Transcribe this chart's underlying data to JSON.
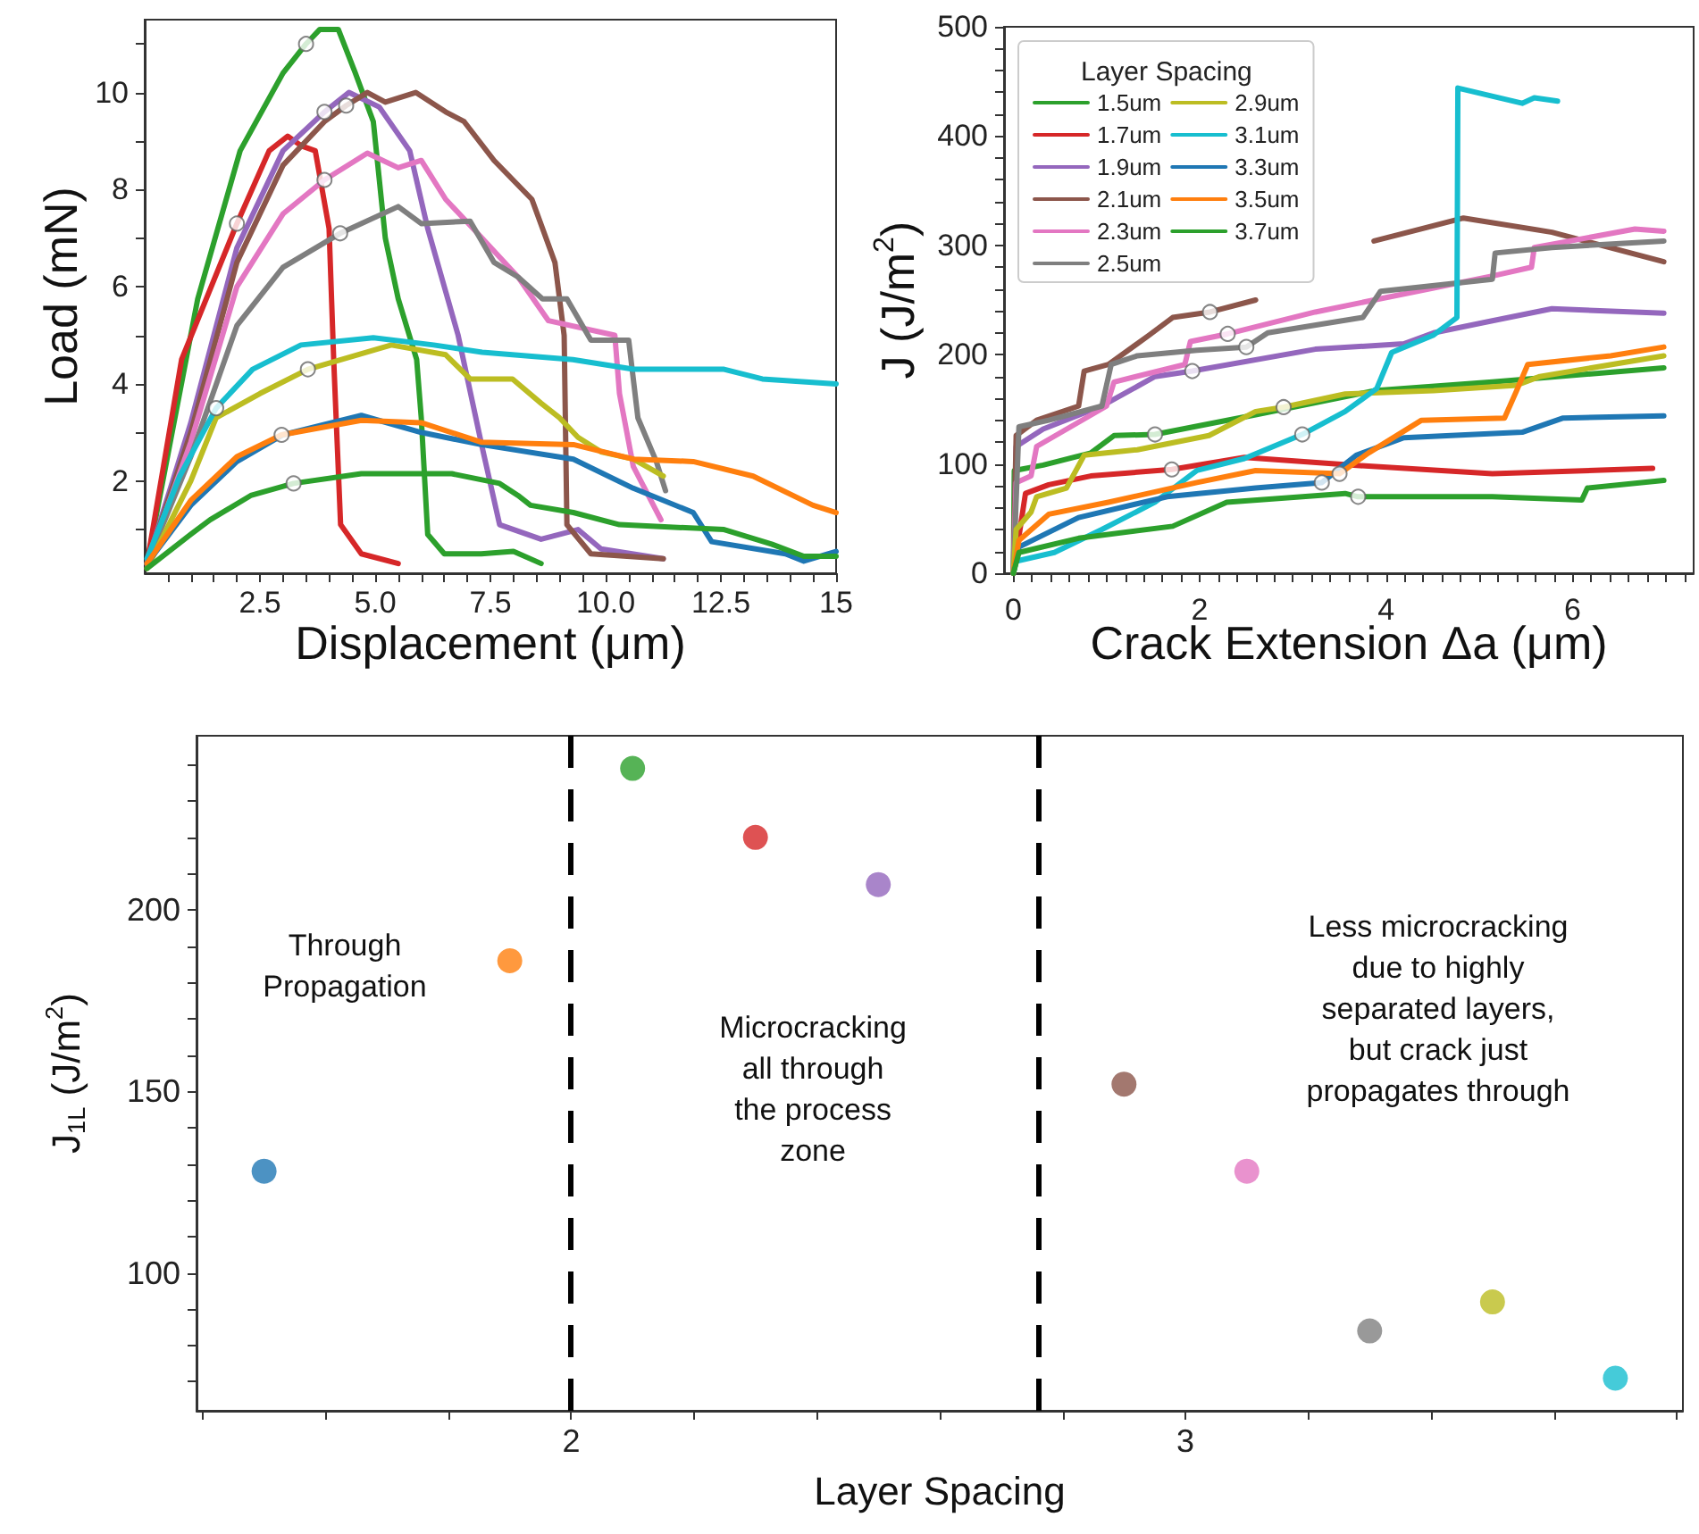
{
  "chart_data": [
    {
      "type": "line",
      "xlabel": "Displacement (μm)",
      "ylabel": "Load (mN)",
      "marker": "none",
      "xlim": [
        0,
        15
      ],
      "ylim": [
        0.1,
        11.5
      ],
      "xticks": [
        {
          "value": 0.5,
          "label": null
        },
        {
          "value": 1,
          "label": null
        },
        {
          "value": 1.5,
          "label": null
        },
        {
          "value": 2,
          "label": null
        },
        2.5,
        {
          "value": 3,
          "label": null
        },
        {
          "value": 3.5,
          "label": null
        },
        {
          "value": 4,
          "label": null
        },
        {
          "value": 4.5,
          "label": null
        },
        {
          "value": 5,
          "label": "5.0"
        },
        {
          "value": 5.5,
          "label": null
        },
        {
          "value": 6,
          "label": null
        },
        {
          "value": 6.5,
          "label": null
        },
        {
          "value": 7,
          "label": null
        },
        7.5,
        {
          "value": 8,
          "label": null
        },
        {
          "value": 8.5,
          "label": null
        },
        {
          "value": 9,
          "label": null
        },
        {
          "value": 9.5,
          "label": null
        },
        {
          "value": 10,
          "label": "10.0"
        },
        {
          "value": 10.5,
          "label": null
        },
        {
          "value": 11,
          "label": null
        },
        {
          "value": 11.5,
          "label": null
        },
        {
          "value": 12,
          "label": null
        },
        12.5,
        {
          "value": 13,
          "label": null
        },
        {
          "value": 13.5,
          "label": null
        },
        {
          "value": 14,
          "label": null
        },
        {
          "value": 14.5,
          "label": null
        },
        15
      ],
      "yticks": [
        {
          "value": 1,
          "label": null
        },
        2,
        {
          "value": 3,
          "label": null
        },
        4,
        {
          "value": 5,
          "label": null
        },
        6,
        {
          "value": 7,
          "label": null
        },
        8,
        {
          "value": 9,
          "label": null
        },
        10,
        {
          "value": 11,
          "label": null
        }
      ],
      "series": [
        {
          "color": "#2ca02c",
          "x": [
            0.05,
            1.15,
            2.07,
            3.0,
            3.5,
            3.8,
            4.2,
            4.57,
            4.96,
            5.22,
            5.5,
            5.9,
            6.0,
            6.14,
            6.5,
            7.3,
            8.0,
            8.6
          ],
          "values": [
            0.3,
            5.75,
            8.8,
            10.4,
            11.0,
            11.3,
            11.3,
            10.4,
            9.4,
            7.0,
            5.75,
            4.5,
            3.3,
            0.9,
            0.5,
            0.5,
            0.55,
            0.3
          ]
        },
        {
          "color": "#d62728",
          "x": [
            0.05,
            0.8,
            2.0,
            2.7,
            3.1,
            3.4,
            3.7,
            4.0,
            4.1,
            4.25,
            4.7,
            5.5
          ],
          "values": [
            0.3,
            4.5,
            7.3,
            8.8,
            9.1,
            8.9,
            8.8,
            7.2,
            4.5,
            1.1,
            0.5,
            0.3
          ]
        },
        {
          "color": "#9467bd",
          "x": [
            0.05,
            1.0,
            2.0,
            3.0,
            3.9,
            4.43,
            5.09,
            5.75,
            6.14,
            6.8,
            7.32,
            7.7,
            8.6,
            9.4,
            9.9,
            11.25
          ],
          "values": [
            0.3,
            3.2,
            6.8,
            8.8,
            9.6,
            10.0,
            9.7,
            8.8,
            7.2,
            5.0,
            2.7,
            1.1,
            0.8,
            1.0,
            0.6,
            0.4
          ]
        },
        {
          "color": "#8c564b",
          "x": [
            0.05,
            1.0,
            2.0,
            3.0,
            3.9,
            4.37,
            4.83,
            5.22,
            5.88,
            6.53,
            6.93,
            7.58,
            8.4,
            8.9,
            9.1,
            9.16,
            9.68,
            11.25
          ],
          "values": [
            0.3,
            3.0,
            6.5,
            8.5,
            9.4,
            9.73,
            10.0,
            9.8,
            10.0,
            9.6,
            9.4,
            8.6,
            7.8,
            6.5,
            5.0,
            1.1,
            0.5,
            0.4
          ]
        },
        {
          "color": "#e377c2",
          "x": [
            0.05,
            1.0,
            2.0,
            3.0,
            3.9,
            4.83,
            5.5,
            6.0,
            6.53,
            7.32,
            8.1,
            8.76,
            10.2,
            10.3,
            10.6,
            11.2
          ],
          "values": [
            0.3,
            2.8,
            6.0,
            7.5,
            8.2,
            8.75,
            8.45,
            8.6,
            7.8,
            7.0,
            6.2,
            5.3,
            5.0,
            3.8,
            2.3,
            1.2
          ]
        },
        {
          "color": "#7f7f7f",
          "x": [
            0.05,
            1.0,
            2.0,
            3.0,
            4.24,
            5.5,
            6.0,
            7.06,
            7.58,
            8.1,
            8.63,
            9.16,
            9.68,
            10.5,
            10.7,
            11.1,
            11.3
          ],
          "values": [
            0.3,
            2.5,
            5.2,
            6.4,
            7.1,
            7.65,
            7.3,
            7.35,
            6.5,
            6.2,
            5.75,
            5.75,
            4.9,
            4.9,
            3.3,
            2.4,
            1.8
          ]
        },
        {
          "color": "#bcbd22",
          "x": [
            0.05,
            1.0,
            1.55,
            2.5,
            3.54,
            5.35,
            6.53,
            7.06,
            7.98,
            8.6,
            9.0,
            9.4,
            9.9,
            10.6,
            11.25
          ],
          "values": [
            0.2,
            2.0,
            3.3,
            3.8,
            4.3,
            4.8,
            4.6,
            4.1,
            4.1,
            3.6,
            3.3,
            2.9,
            2.6,
            2.45,
            2.1
          ]
        },
        {
          "color": "#17becf",
          "x": [
            0.05,
            0.76,
            1.55,
            2.34,
            3.39,
            4.96,
            6.27,
            7.32,
            9.29,
            10.6,
            12.57,
            13.4,
            15
          ],
          "values": [
            0.4,
            2.1,
            3.5,
            4.3,
            4.8,
            4.95,
            4.8,
            4.65,
            4.5,
            4.3,
            4.3,
            4.1,
            4.0
          ]
        },
        {
          "color": "#1f77b4",
          "x": [
            0.05,
            1.0,
            2.0,
            3.0,
            4.7,
            6.0,
            7.3,
            9.3,
            10.6,
            11.9,
            12.3,
            13.9,
            14.3,
            15
          ],
          "values": [
            0.3,
            1.5,
            2.4,
            2.95,
            3.35,
            3.0,
            2.75,
            2.45,
            1.85,
            1.35,
            0.75,
            0.5,
            0.35,
            0.55
          ]
        },
        {
          "color": "#ff7f0e",
          "x": [
            0.05,
            1.0,
            2.0,
            2.97,
            4.7,
            6.0,
            7.3,
            9.3,
            10.6,
            11.9,
            13.2,
            14.5,
            15
          ],
          "values": [
            0.3,
            1.6,
            2.5,
            2.95,
            3.25,
            3.2,
            2.8,
            2.75,
            2.45,
            2.4,
            2.1,
            1.5,
            1.35
          ]
        },
        {
          "color": "#2ca02c",
          "x": [
            0.05,
            1.0,
            1.42,
            2.3,
            3.23,
            4.7,
            6.66,
            7.7,
            8.1,
            8.37,
            9.3,
            10.3,
            12.57,
            13.6,
            14.3,
            15
          ],
          "values": [
            0.2,
            0.9,
            1.2,
            1.7,
            1.95,
            2.15,
            2.15,
            1.95,
            1.7,
            1.5,
            1.35,
            1.1,
            1.0,
            0.7,
            0.45,
            0.45
          ]
        },
        {
          "type": "scatter",
          "marker": "circle",
          "color": "#ffffff",
          "x": [
            2.0,
            3.5,
            3.9,
            4.37,
            3.9,
            4.24,
            3.54,
            1.55,
            2.97,
            3.23
          ],
          "values": [
            7.3,
            11.0,
            9.6,
            9.73,
            8.2,
            7.1,
            4.3,
            3.5,
            2.95,
            1.95
          ]
        }
      ]
    },
    {
      "type": "line",
      "xlabel": "Crack Extension Δa (μm)",
      "ylabel": "J (J/m$^{2}$)",
      "legend_title": "Layer Spacing",
      "legend": "top left",
      "marker": "none",
      "xlim": [
        -0.1,
        7.3
      ],
      "ylim": [
        0,
        500
      ],
      "xticks": [
        0,
        {
          "value": 0.2,
          "label": null
        },
        {
          "value": 0.4,
          "label": null
        },
        {
          "value": 0.6,
          "label": null
        },
        {
          "value": 0.8,
          "label": null
        },
        {
          "value": 1,
          "label": null
        },
        {
          "value": 1.2,
          "label": null
        },
        {
          "value": 1.4,
          "label": null
        },
        {
          "value": 1.6,
          "label": null
        },
        {
          "value": 1.8,
          "label": null
        },
        2,
        {
          "value": 2.2,
          "label": null
        },
        {
          "value": 2.4,
          "label": null
        },
        {
          "value": 2.6,
          "label": null
        },
        {
          "value": 2.8,
          "label": null
        },
        {
          "value": 3,
          "label": null
        },
        {
          "value": 3.2,
          "label": null
        },
        {
          "value": 3.4,
          "label": null
        },
        {
          "value": 3.6,
          "label": null
        },
        {
          "value": 3.8,
          "label": null
        },
        4,
        {
          "value": 4.2,
          "label": null
        },
        {
          "value": 4.4,
          "label": null
        },
        {
          "value": 4.6,
          "label": null
        },
        {
          "value": 4.8,
          "label": null
        },
        {
          "value": 5,
          "label": null
        },
        {
          "value": 5.2,
          "label": null
        },
        {
          "value": 5.4,
          "label": null
        },
        {
          "value": 5.6,
          "label": null
        },
        {
          "value": 5.8,
          "label": null
        },
        6,
        {
          "value": 6.2,
          "label": null
        },
        {
          "value": 6.4,
          "label": null
        },
        {
          "value": 6.6,
          "label": null
        },
        {
          "value": 6.8,
          "label": null
        },
        {
          "value": 7,
          "label": null
        },
        {
          "value": 7.2,
          "label": null
        }
      ],
      "yticks": [
        0,
        {
          "value": 20,
          "label": null
        },
        {
          "value": 40,
          "label": null
        },
        {
          "value": 60,
          "label": null
        },
        {
          "value": 80,
          "label": null
        },
        100,
        {
          "value": 120,
          "label": null
        },
        {
          "value": 140,
          "label": null
        },
        {
          "value": 160,
          "label": null
        },
        {
          "value": 180,
          "label": null
        },
        200,
        {
          "value": 220,
          "label": null
        },
        {
          "value": 240,
          "label": null
        },
        {
          "value": 260,
          "label": null
        },
        {
          "value": 280,
          "label": null
        },
        300,
        {
          "value": 320,
          "label": null
        },
        {
          "value": 340,
          "label": null
        },
        {
          "value": 360,
          "label": null
        },
        {
          "value": 380,
          "label": null
        },
        400,
        {
          "value": 420,
          "label": null
        },
        {
          "value": 440,
          "label": null
        },
        {
          "value": 460,
          "label": null
        },
        {
          "value": 480,
          "label": null
        },
        500
      ],
      "series": [
        {
          "name": "1.5um",
          "color": "#2ca02c",
          "x": [
            0,
            0.01,
            0.32,
            0.83,
            1.08,
            1.52,
            2.6,
            3.87,
            5.14,
            6.98
          ],
          "values": [
            0,
            94,
            99,
            110,
            126,
            127,
            145,
            167,
            175,
            188
          ]
        },
        {
          "name": "1.7um",
          "color": "#d62728",
          "x": [
            0,
            0.13,
            0.38,
            0.83,
            1.7,
            2.48,
            3.62,
            5.14,
            6.86
          ],
          "values": [
            0,
            73,
            81,
            89,
            95,
            106,
            99,
            91,
            96
          ]
        },
        {
          "name": "1.9um",
          "color": "#9467bd",
          "x": [
            0,
            0.03,
            0.32,
            0.95,
            1.52,
            1.92,
            3.24,
            4.19,
            4.51,
            5.14,
            5.78,
            6.98
          ],
          "values": [
            0,
            116,
            132,
            153,
            180,
            185,
            205,
            210,
            220,
            231,
            242,
            238
          ]
        },
        {
          "name": "2.1um",
          "color": "#8c564b",
          "x": [
            0,
            0.03,
            0.25,
            0.7,
            0.76,
            1.02,
            1.46,
            1.71,
            2.11,
            2.6,
            2.86,
            3.56,
            3.87,
            4.83,
            5.78,
            6.98
          ],
          "values": [
            0,
            126,
            140,
            153,
            185,
            191,
            218,
            234,
            239,
            250,
            null,
            null,
            304,
            325,
            312,
            285
          ]
        },
        {
          "name": "2.3um",
          "color": "#e377c2",
          "x": [
            0,
            0.03,
            0.19,
            0.25,
            1.0,
            1.08,
            1.84,
            1.9,
            2.3,
            3.24,
            3.87,
            4.51,
            5.14,
            5.56,
            5.59,
            6.67,
            6.98
          ],
          "values": [
            0,
            83,
            89,
            116,
            153,
            175,
            191,
            212,
            219,
            239,
            250,
            261,
            272,
            280,
            298,
            315,
            313
          ]
        },
        {
          "name": "2.5um",
          "color": "#7f7f7f",
          "x": [
            0,
            0.06,
            0.38,
            0.95,
            1.05,
            1.33,
            1.97,
            2.5,
            2.73,
            3.75,
            3.94,
            5.14,
            5.17,
            5.78,
            6.98
          ],
          "values": [
            0,
            134,
            140,
            153,
            191,
            199,
            204,
            207,
            220,
            234,
            258,
            269,
            293,
            298,
            304
          ]
        },
        {
          "name": "2.9um",
          "color": "#bcbd22",
          "x": [
            0,
            0.03,
            0.19,
            0.25,
            0.57,
            0.76,
            1.33,
            2.1,
            2.6,
            2.9,
            3.56,
            4.51,
            5.4,
            5.65,
            6.98
          ],
          "values": [
            0,
            40,
            56,
            70,
            78,
            108,
            113,
            126,
            148,
            152,
            164,
            167,
            172,
            180,
            199
          ]
        },
        {
          "name": "3.1um",
          "color": "#17becf",
          "x": [
            0,
            0.03,
            0.44,
            0.95,
            1.52,
            1.97,
            2.48,
            3.1,
            3.56,
            3.9,
            4.06,
            4.51,
            4.76,
            4.77,
            5.46,
            5.59,
            5.84
          ],
          "values": [
            0,
            11,
            19,
            40,
            65,
            94,
            105,
            127,
            148,
            169,
            202,
            218,
            234,
            444,
            430,
            435,
            432
          ]
        },
        {
          "name": "3.3um",
          "color": "#1f77b4",
          "x": [
            0,
            0.06,
            0.7,
            1.65,
            2.6,
            3.31,
            3.68,
            4.19,
            5.46,
            5.9,
            6.98
          ],
          "values": [
            0,
            24,
            51,
            70,
            78,
            83,
            108,
            124,
            129,
            142,
            144
          ]
        },
        {
          "name": "3.5um",
          "color": "#ff7f0e",
          "x": [
            0,
            0.06,
            0.38,
            1.02,
            1.97,
            2.6,
            3.5,
            3.81,
            4.38,
            5.27,
            5.4,
            5.52,
            6.41,
            6.98
          ],
          "values": [
            0,
            30,
            54,
            65,
            83,
            94,
            91,
            110,
            140,
            142,
            167,
            191,
            199,
            207
          ]
        },
        {
          "name": "3.7um",
          "color": "#2ca02c",
          "x": [
            0,
            0.06,
            0.7,
            1.71,
            2.29,
            3.56,
            3.7,
            5.14,
            6.1,
            6.16,
            6.98
          ],
          "values": [
            0,
            19,
            32,
            43,
            65,
            73,
            70,
            70,
            67,
            78,
            85
          ]
        },
        {
          "type": "scatter",
          "marker": "circle",
          "color": "#ffffff",
          "x": [
            1.52,
            1.7,
            1.92,
            2.11,
            2.3,
            2.5,
            2.9,
            3.1,
            3.31,
            3.5,
            3.7
          ],
          "values": [
            127,
            95,
            185,
            239,
            219,
            207,
            152,
            127,
            83,
            91,
            70
          ]
        }
      ]
    },
    {
      "type": "scatter",
      "xlabel": "Layer Spacing",
      "ylabel": "J$_{1L}$ (J/m$^{2}$)",
      "marker": "circle",
      "xlim": [
        1.39,
        3.81
      ],
      "ylim": [
        62,
        248
      ],
      "xticks": [
        {
          "value": 1.4,
          "label": null
        },
        {
          "value": 1.6,
          "label": null
        },
        {
          "value": 1.8,
          "label": null
        },
        2,
        {
          "value": 2.2,
          "label": null
        },
        {
          "value": 2.4,
          "label": null
        },
        {
          "value": 2.6,
          "label": null
        },
        {
          "value": 2.8,
          "label": null
        },
        3,
        {
          "value": 3.2,
          "label": null
        },
        {
          "value": 3.4,
          "label": null
        },
        {
          "value": 3.6,
          "label": null
        },
        {
          "value": 3.8,
          "label": null
        }
      ],
      "yticks": [
        {
          "value": 70,
          "label": null
        },
        {
          "value": 80,
          "label": null
        },
        {
          "value": 90,
          "label": null
        },
        100,
        {
          "value": 110,
          "label": null
        },
        {
          "value": 120,
          "label": null
        },
        {
          "value": 130,
          "label": null
        },
        {
          "value": 140,
          "label": null
        },
        150,
        {
          "value": 160,
          "label": null
        },
        {
          "value": 170,
          "label": null
        },
        {
          "value": 180,
          "label": null
        },
        {
          "value": 190,
          "label": null
        },
        200,
        {
          "value": 210,
          "label": null
        },
        {
          "value": 220,
          "label": null
        },
        {
          "value": 230,
          "label": null
        },
        {
          "value": 240,
          "label": null
        }
      ],
      "x": [
        1.5,
        1.9,
        2.1,
        2.3,
        2.5,
        2.9,
        3.1,
        3.3,
        3.5,
        3.7
      ],
      "values": [
        128,
        186,
        239,
        220,
        207,
        152,
        128,
        84,
        92,
        71
      ],
      "colors": [
        "#1f77b4",
        "#ff7f0e",
        "#2ca02c",
        "#d62728",
        "#9467bd",
        "#8c564b",
        "#e377c2",
        "#7f7f7f",
        "#bcbd22",
        "#17becf"
      ],
      "ref_lines": [
        {
          "axis": "x",
          "value": 2.0,
          "color": "#000000",
          "line_style": "dashed"
        },
        {
          "axis": "x",
          "value": 2.76,
          "color": "#000000",
          "line_style": "dashed"
        }
      ],
      "annotations": [
        "Through\nPropagation",
        "Microcracking\nall through\nthe process\nzone",
        "Less microcracking\ndue to highly\nseparated layers,\nbut crack just\npropagates through"
      ]
    }
  ]
}
